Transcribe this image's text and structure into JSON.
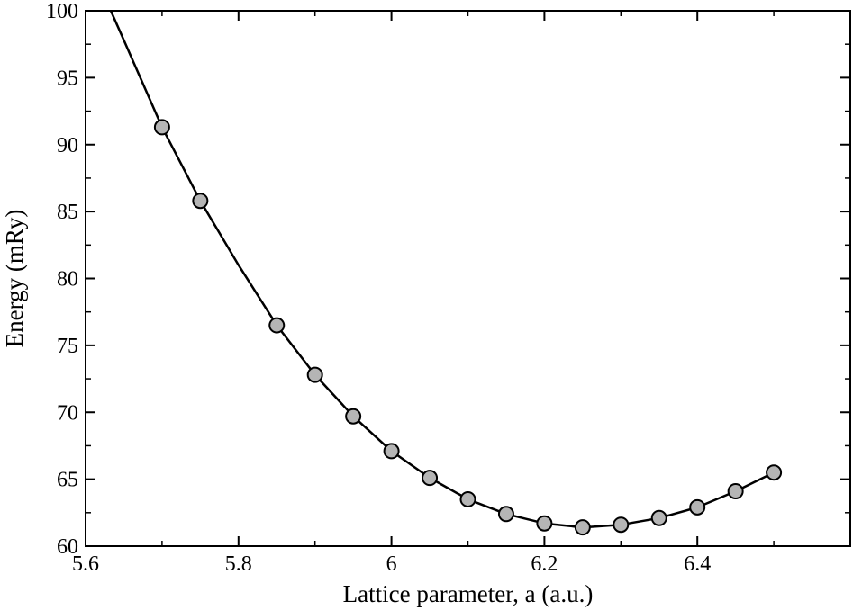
{
  "chart_data": {
    "type": "line",
    "title": "",
    "xlabel": "Lattice parameter, a  (a.u.)",
    "ylabel": "Energy (mRy)",
    "xlim": [
      5.6,
      6.6
    ],
    "ylim": [
      60,
      100
    ],
    "xticks": [
      5.6,
      5.8,
      6.0,
      6.2,
      6.4
    ],
    "xtick_labels": [
      "5.6",
      "5.8",
      "6",
      "6.2",
      "6.4"
    ],
    "yticks": [
      60,
      65,
      70,
      75,
      80,
      85,
      90,
      95,
      100
    ],
    "ytick_labels": [
      "60",
      "65",
      "70",
      "75",
      "80",
      "85",
      "90",
      "95",
      "100"
    ],
    "grid": false,
    "legend": false,
    "colors": {
      "line": "#000000",
      "marker_fill": "#b5b5b5",
      "marker_edge": "#000000"
    },
    "series": [
      {
        "type": "scatter",
        "x": [
          5.7,
          5.75,
          5.85,
          5.9,
          5.95,
          6.0,
          6.05,
          6.1,
          6.15,
          6.2,
          6.25,
          6.3,
          6.35,
          6.4,
          6.45,
          6.5
        ],
        "y": [
          91.3,
          85.8,
          76.5,
          72.8,
          69.7,
          67.1,
          65.1,
          63.5,
          62.4,
          61.7,
          61.4,
          61.6,
          62.1,
          62.9,
          64.1,
          65.5
        ]
      },
      {
        "type": "line",
        "x": [
          5.633,
          5.65,
          5.7,
          5.75,
          5.8,
          5.85,
          5.9,
          5.95,
          6.0,
          6.05,
          6.1,
          6.15,
          6.2,
          6.25,
          6.3,
          6.35,
          6.4,
          6.45,
          6.5
        ],
        "y": [
          100.0,
          97.8,
          91.3,
          85.8,
          81.0,
          76.5,
          72.8,
          69.7,
          67.1,
          65.1,
          63.5,
          62.4,
          61.7,
          61.4,
          61.6,
          62.1,
          62.9,
          64.1,
          65.5
        ]
      }
    ]
  }
}
